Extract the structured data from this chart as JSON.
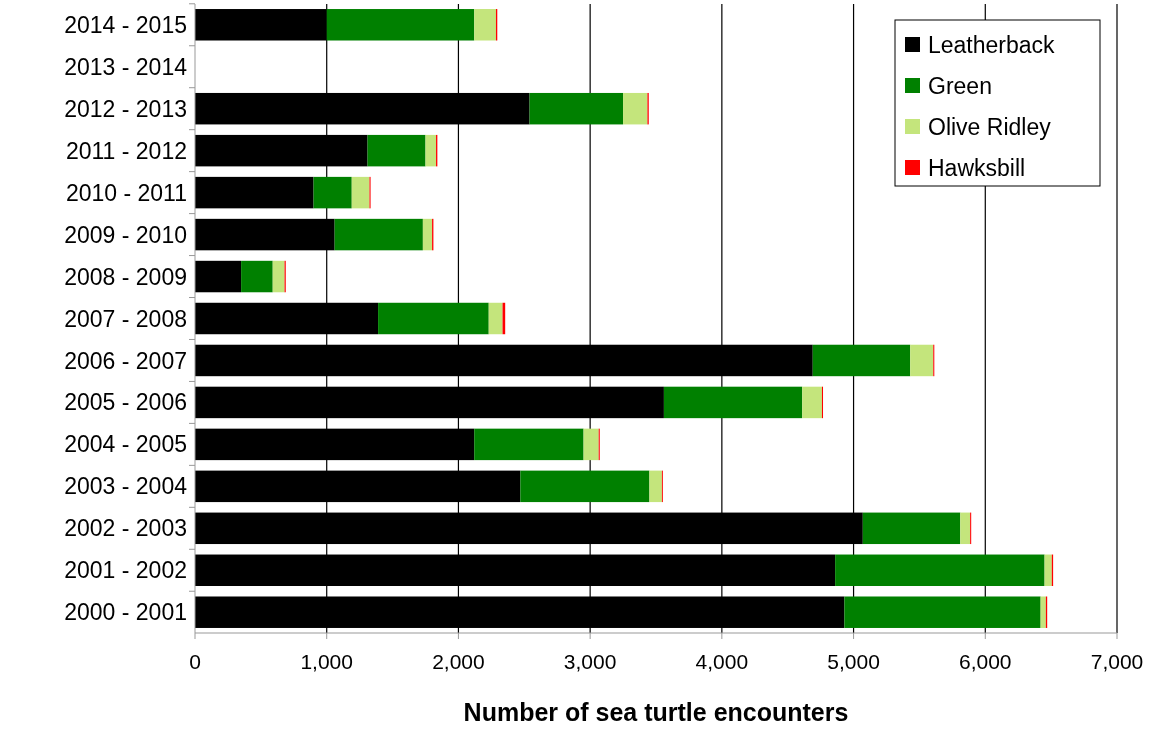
{
  "chart_data": {
    "type": "bar",
    "orientation": "horizontal",
    "stacked": true,
    "xlabel": "Number of sea turtle encounters",
    "categories": [
      "2014 - 2015",
      "2013 - 2014",
      "2012 - 2013",
      "2011 - 2012",
      "2010 - 2011",
      "2009 - 2010",
      "2008 - 2009",
      "2007 - 2008",
      "2006 - 2007",
      "2005 - 2006",
      "2004 - 2005",
      "2003 - 2004",
      "2002 - 2003",
      "2001 - 2002",
      "2000 - 2001"
    ],
    "series": [
      {
        "name": "Leatherback",
        "color": "#000000",
        "values": [
          1000,
          null,
          2540,
          1310,
          900,
          1060,
          350,
          1390,
          4690,
          3560,
          2120,
          2470,
          5070,
          4860,
          4930
        ]
      },
      {
        "name": "Green",
        "color": "#008000",
        "values": [
          1120,
          null,
          710,
          440,
          290,
          670,
          240,
          840,
          740,
          1050,
          830,
          980,
          740,
          1590,
          1490
        ]
      },
      {
        "name": "Olive Ridley",
        "color": "#c4e57c",
        "values": [
          165,
          null,
          185,
          80,
          135,
          70,
          90,
          105,
          175,
          150,
          115,
          95,
          75,
          55,
          40
        ]
      },
      {
        "name": "Hawksbill",
        "color": "#ff0000",
        "values": [
          10,
          null,
          10,
          10,
          8,
          10,
          9,
          20,
          8,
          8,
          8,
          7,
          8,
          10,
          10
        ]
      }
    ],
    "xlim": [
      0,
      7000
    ],
    "xticks": [
      {
        "value": 0,
        "label": "0"
      },
      {
        "value": 1000,
        "label": "1,000"
      },
      {
        "value": 2000,
        "label": "2,000"
      },
      {
        "value": 3000,
        "label": "3,000"
      },
      {
        "value": 4000,
        "label": "4,000"
      },
      {
        "value": 5000,
        "label": "5,000"
      },
      {
        "value": 6000,
        "label": "6,000"
      },
      {
        "value": 7000,
        "label": "7,000"
      }
    ],
    "grid": "x",
    "legend": "top right"
  }
}
